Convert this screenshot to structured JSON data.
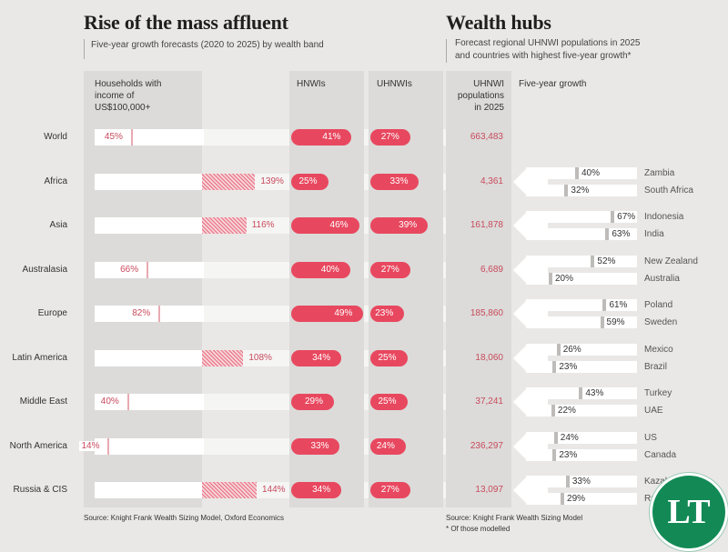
{
  "left_panel": {
    "title": "Rise of the mass affluent",
    "subtitle": "Five-year growth forecasts (2020 to 2025) by wealth band",
    "source": "Source: Knight Frank Wealth Sizing Model, Oxford Economics"
  },
  "right_panel": {
    "title": "Wealth hubs",
    "subtitle_line1": "Forecast regional UHNWI populations in 2025",
    "subtitle_line2": "and countries with highest five-year growth*",
    "source": "Source: Knight Frank Wealth Sizing Model",
    "footnote": "* Of those modelled"
  },
  "logo": {
    "text": "LT",
    "color": "#138a56"
  },
  "colors": {
    "accent": "#e8485f",
    "value_text": "#c84a5c",
    "background": "#e9e8e6",
    "grey_bar": "#bdbcba"
  },
  "chart_data": [
    {
      "type": "bar",
      "title": "Rise of the mass affluent",
      "subtitle": "Five-year growth forecasts (2020 to 2025) by wealth band",
      "categories": [
        "World",
        "Africa",
        "Asia",
        "Australasia",
        "Europe",
        "Latin America",
        "Middle East",
        "North America",
        "Russia & CIS"
      ],
      "headers": {
        "households_line1": "Households with",
        "households_line2": "income of",
        "households_line3": "US$100,000+",
        "hnwis": "HNWIs",
        "uhnwis": "UHNWIs",
        "pop_line1": "UHNWI",
        "pop_line2": "populations",
        "pop_line3": "in 2025"
      },
      "series": [
        {
          "name": "Households with income of US$100,000+",
          "unit": "%",
          "values": [
            45,
            139,
            116,
            66,
            82,
            108,
            40,
            14,
            144
          ],
          "labels": [
            "45%",
            "139%",
            "116%",
            "66%",
            "82%",
            "108%",
            "40%",
            "14%",
            "144%"
          ]
        },
        {
          "name": "HNWIs",
          "unit": "%",
          "values": [
            41,
            25,
            46,
            40,
            49,
            34,
            29,
            33,
            34
          ],
          "labels": [
            "41%",
            "25%",
            "46%",
            "40%",
            "49%",
            "34%",
            "29%",
            "33%",
            "34%"
          ]
        },
        {
          "name": "UHNWIs",
          "unit": "%",
          "values": [
            27,
            33,
            39,
            27,
            23,
            25,
            25,
            24,
            27
          ],
          "labels": [
            "27%",
            "33%",
            "39%",
            "27%",
            "23%",
            "25%",
            "25%",
            "24%",
            "27%"
          ]
        }
      ],
      "uhnwi_populations_2025": [
        "663,483",
        "4,361",
        "161,878",
        "6,689",
        "185,860",
        "18,060",
        "37,241",
        "236,297",
        "13,097"
      ]
    },
    {
      "type": "bar",
      "title": "Wealth hubs",
      "xlabel": "Five-year growth",
      "groups": [
        {
          "region": "Africa",
          "countries": [
            {
              "name": "Zambia",
              "value": 40,
              "label": "40%"
            },
            {
              "name": "South Africa",
              "value": 32,
              "label": "32%"
            }
          ]
        },
        {
          "region": "Asia",
          "countries": [
            {
              "name": "Indonesia",
              "value": 67,
              "label": "67%"
            },
            {
              "name": "India",
              "value": 63,
              "label": "63%"
            }
          ]
        },
        {
          "region": "Australasia",
          "countries": [
            {
              "name": "New Zealand",
              "value": 52,
              "label": "52%"
            },
            {
              "name": "Australia",
              "value": 20,
              "label": "20%"
            }
          ]
        },
        {
          "region": "Europe",
          "countries": [
            {
              "name": "Poland",
              "value": 61,
              "label": "61%"
            },
            {
              "name": "Sweden",
              "value": 59,
              "label": "59%"
            }
          ]
        },
        {
          "region": "Latin America",
          "countries": [
            {
              "name": "Mexico",
              "value": 26,
              "label": "26%"
            },
            {
              "name": "Brazil",
              "value": 23,
              "label": "23%"
            }
          ]
        },
        {
          "region": "Middle East",
          "countries": [
            {
              "name": "Turkey",
              "value": 43,
              "label": "43%"
            },
            {
              "name": "UAE",
              "value": 22,
              "label": "22%"
            }
          ]
        },
        {
          "region": "North America",
          "countries": [
            {
              "name": "US",
              "value": 24,
              "label": "24%"
            },
            {
              "name": "Canada",
              "value": 23,
              "label": "23%"
            }
          ]
        },
        {
          "region": "Russia & CIS",
          "countries": [
            {
              "name": "Kazakhstan",
              "value": 33,
              "label": "33%"
            },
            {
              "name": "Russia",
              "value": 29,
              "label": "29%"
            }
          ]
        }
      ]
    }
  ]
}
